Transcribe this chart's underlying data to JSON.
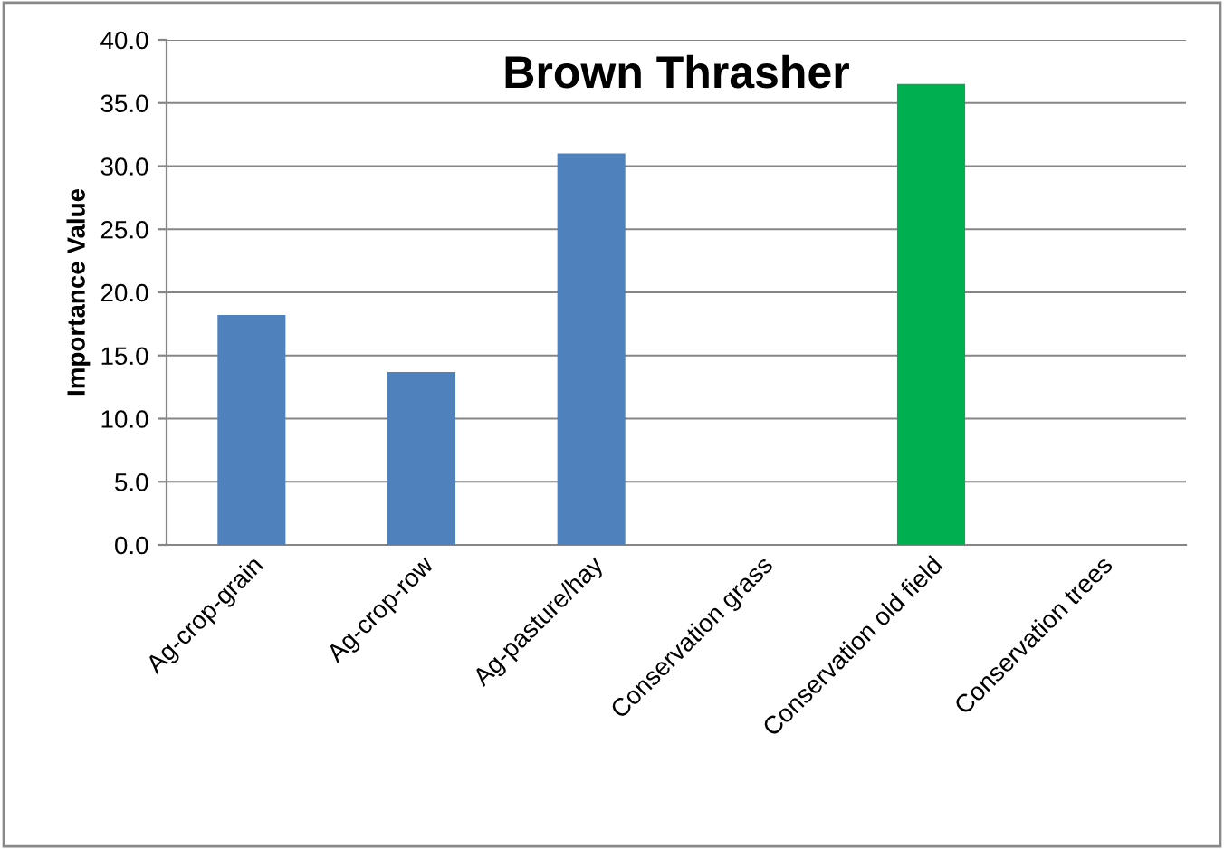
{
  "chart_data": {
    "type": "bar",
    "title": "Brown Thrasher",
    "ylabel": "Importance Value",
    "categories": [
      "Ag-crop-grain",
      "Ag-crop-row",
      "Ag-pasture/hay",
      "Conservation grass",
      "Conservation old field",
      "Conservation trees"
    ],
    "values": [
      18.2,
      13.7,
      31.0,
      0,
      36.5,
      0
    ],
    "colors": [
      "#4f81bd",
      "#4f81bd",
      "#4f81bd",
      "#4f81bd",
      "#00b050",
      "#4f81bd"
    ],
    "ylim": [
      0,
      40
    ],
    "yticks": [
      {
        "value": 0,
        "label": "0.0"
      },
      {
        "value": 5,
        "label": "5.0"
      },
      {
        "value": 10,
        "label": "10.0"
      },
      {
        "value": 15,
        "label": "15.0"
      },
      {
        "value": 20,
        "label": "20.0"
      },
      {
        "value": 25,
        "label": "25.0"
      },
      {
        "value": 30,
        "label": "30.0"
      },
      {
        "value": 35,
        "label": "35.0"
      },
      {
        "value": 40,
        "label": "40.0"
      }
    ],
    "grid": "y",
    "legend": false
  }
}
